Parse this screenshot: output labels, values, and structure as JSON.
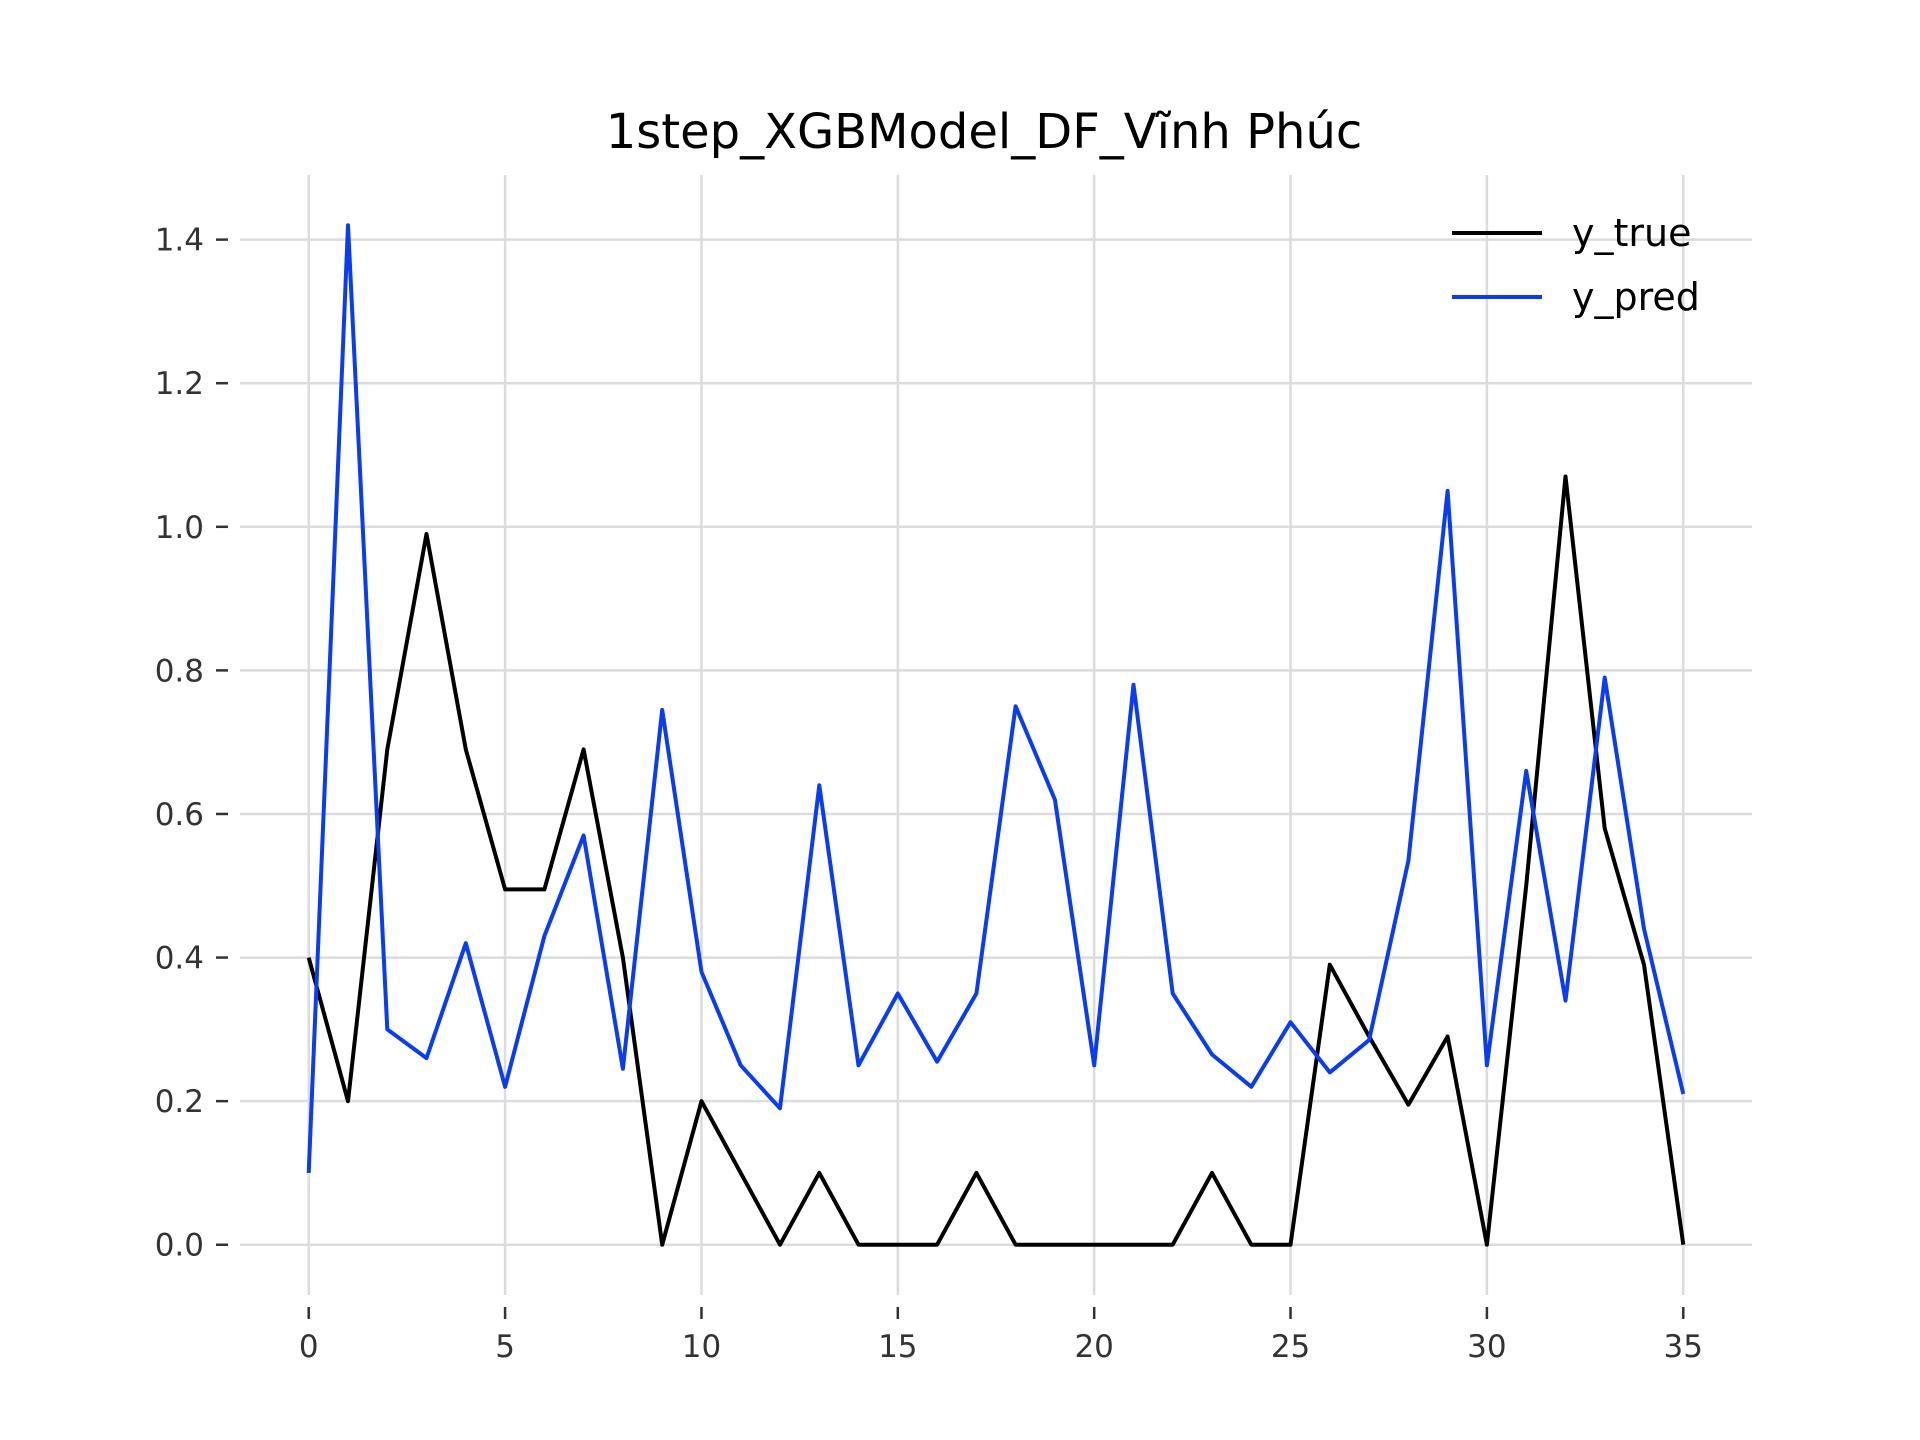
{
  "chart_data": {
    "type": "line",
    "title": "1step_XGBModel_DF_Vĩnh Phúc",
    "xlabel": "",
    "ylabel": "",
    "xlim": [
      -1.75,
      36.75
    ],
    "ylim": [
      -0.07,
      1.49
    ],
    "xticks": [
      0,
      5,
      10,
      15,
      20,
      25,
      30,
      35
    ],
    "xtick_labels": [
      "0",
      "5",
      "10",
      "15",
      "20",
      "25",
      "30",
      "35"
    ],
    "yticks": [
      0.0,
      0.2,
      0.4,
      0.6,
      0.8,
      1.0,
      1.2,
      1.4
    ],
    "ytick_labels": [
      "0.0",
      "0.2",
      "0.4",
      "0.6",
      "0.8",
      "1.0",
      "1.2",
      "1.4"
    ],
    "grid": true,
    "legend_position": "top-right",
    "x": [
      0,
      1,
      2,
      3,
      4,
      5,
      6,
      7,
      8,
      9,
      10,
      11,
      12,
      13,
      14,
      15,
      16,
      17,
      18,
      19,
      20,
      21,
      22,
      23,
      24,
      25,
      26,
      27,
      28,
      29,
      30,
      31,
      32,
      33,
      34,
      35
    ],
    "series": [
      {
        "name": "y_true",
        "color": "#000000",
        "values": [
          0.4,
          0.2,
          0.69,
          0.99,
          0.69,
          0.495,
          0.495,
          0.69,
          0.4,
          0.0,
          0.2,
          0.1,
          0.0,
          0.1,
          0.0,
          0.0,
          0.0,
          0.1,
          0.0,
          0.0,
          0.0,
          0.0,
          0.0,
          0.1,
          0.0,
          0.0,
          0.39,
          0.29,
          0.195,
          0.29,
          0.0,
          0.5,
          1.07,
          0.58,
          0.39,
          0.0
        ]
      },
      {
        "name": "y_pred",
        "color": "#0a3cf0",
        "values": [
          0.1,
          1.42,
          0.3,
          0.26,
          0.42,
          0.22,
          0.43,
          0.57,
          0.245,
          0.745,
          0.38,
          0.25,
          0.19,
          0.64,
          0.25,
          0.35,
          0.255,
          0.35,
          0.75,
          0.62,
          0.25,
          0.78,
          0.35,
          0.265,
          0.22,
          0.31,
          0.24,
          0.285,
          0.535,
          1.05,
          0.25,
          0.66,
          0.34,
          0.79,
          0.44,
          0.21
        ]
      }
    ]
  }
}
